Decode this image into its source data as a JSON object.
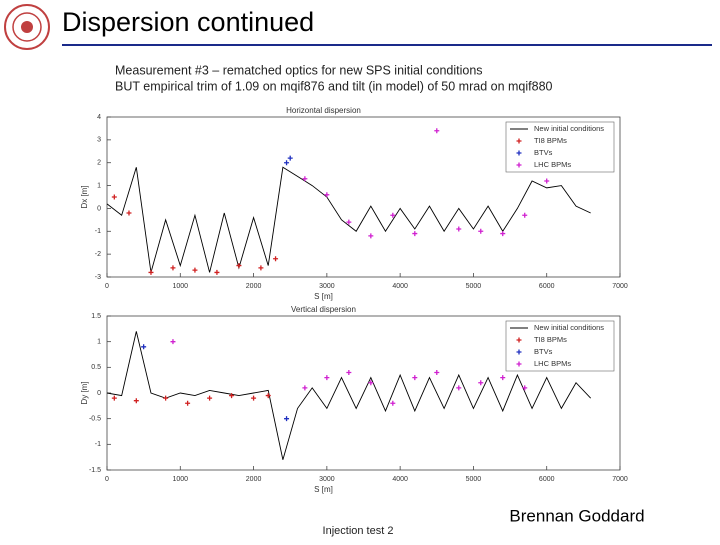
{
  "header": {
    "title": "Dispersion continued",
    "lines": [
      "Measurement #3 – rematched optics for new SPS initial conditions",
      "BUT empirical trim of 1.09 on mqif876 and tilt (in model) of 50 mrad on mqif880"
    ]
  },
  "footer": {
    "left": "Injection test 2",
    "right": "Brennan Goddard"
  },
  "chart_data": [
    {
      "type": "line",
      "title": "Horizontal dispersion",
      "x_label": "S [m]",
      "y_label": "Dx [m]",
      "x": [
        0,
        200,
        400,
        600,
        800,
        1000,
        1200,
        1400,
        1600,
        1800,
        2000,
        2200,
        2400,
        2600,
        2800,
        3000,
        3200,
        3400,
        3600,
        3800,
        4000,
        4200,
        4400,
        4600,
        4800,
        5000,
        5200,
        5400,
        5600,
        5800,
        6000,
        6200,
        6400,
        6600
      ],
      "xlim": [
        0,
        7000
      ],
      "xticks": [
        0,
        1000,
        2000,
        3000,
        4000,
        5000,
        6000,
        7000
      ],
      "ylim": [
        -3,
        4
      ],
      "yticks": [
        -3,
        -2,
        -1,
        0,
        1,
        2,
        3,
        4
      ],
      "grid": false,
      "legend": "upper right",
      "series": [
        {
          "name": "New initial conditions",
          "color": "#000000",
          "values": [
            0.2,
            -0.3,
            1.8,
            -2.8,
            -0.5,
            -2.5,
            -0.3,
            -2.8,
            -0.2,
            -2.6,
            -0.4,
            -2.5,
            1.8,
            1.4,
            1.0,
            0.5,
            -0.5,
            -1.0,
            0.1,
            -1.0,
            0.0,
            -0.9,
            0.1,
            -1.0,
            0.0,
            -0.9,
            0.1,
            -1.0,
            0.0,
            1.2,
            0.9,
            1.0,
            0.1,
            -0.2
          ]
        },
        {
          "name": "TI8 BPMs",
          "color": "#d02020",
          "marker": true,
          "x": [
            100,
            300,
            600,
            900,
            1200,
            1500,
            1800,
            2100,
            2300
          ],
          "values": [
            0.5,
            -0.2,
            -2.8,
            -2.6,
            -2.7,
            -2.8,
            -2.5,
            -2.6,
            -2.2
          ]
        },
        {
          "name": "BTVs",
          "color": "#2030c0",
          "marker": true,
          "x": [
            2450,
            2500
          ],
          "values": [
            2.0,
            2.2
          ]
        },
        {
          "name": "LHC BPMs",
          "color": "#d020d0",
          "marker": true,
          "x": [
            2700,
            3000,
            3300,
            3600,
            3900,
            4200,
            4500,
            4800,
            5100,
            5400,
            5700,
            6000
          ],
          "values": [
            1.3,
            0.6,
            -0.6,
            -1.2,
            -0.3,
            -1.1,
            3.4,
            -0.9,
            -1.0,
            -1.1,
            -0.3,
            1.2
          ]
        }
      ]
    },
    {
      "type": "line",
      "title": "Vertical dispersion",
      "x_label": "S [m]",
      "y_label": "Dy [m]",
      "x": [
        0,
        200,
        400,
        600,
        800,
        1000,
        1200,
        1400,
        1600,
        1800,
        2000,
        2200,
        2400,
        2600,
        2800,
        3000,
        3200,
        3400,
        3600,
        3800,
        4000,
        4200,
        4400,
        4600,
        4800,
        5000,
        5200,
        5400,
        5600,
        5800,
        6000,
        6200,
        6400,
        6600
      ],
      "xlim": [
        0,
        7000
      ],
      "xticks": [
        0,
        1000,
        2000,
        3000,
        4000,
        5000,
        6000,
        7000
      ],
      "ylim": [
        -1.5,
        1.5
      ],
      "yticks": [
        -1.5,
        -1,
        -0.5,
        0,
        0.5,
        1,
        1.5
      ],
      "grid": false,
      "legend": "upper right",
      "series": [
        {
          "name": "New initial conditions",
          "color": "#000000",
          "values": [
            0,
            -0.05,
            1.2,
            0.0,
            -0.1,
            0.0,
            -0.05,
            0.05,
            0.0,
            -0.05,
            0.0,
            0.05,
            -1.3,
            -0.3,
            0.1,
            -0.3,
            0.3,
            -0.3,
            0.3,
            -0.35,
            0.35,
            -0.35,
            0.3,
            -0.3,
            0.35,
            -0.3,
            0.3,
            -0.35,
            0.35,
            -0.3,
            0.3,
            -0.3,
            0.2,
            -0.1
          ]
        },
        {
          "name": "TI8 BPMs",
          "color": "#d02020",
          "marker": true,
          "x": [
            100,
            400,
            800,
            1100,
            1400,
            1700,
            2000,
            2200
          ],
          "values": [
            -0.1,
            -0.15,
            -0.1,
            -0.2,
            -0.1,
            -0.05,
            -0.1,
            -0.05
          ]
        },
        {
          "name": "BTVs",
          "color": "#2030c0",
          "marker": true,
          "x": [
            500,
            2450
          ],
          "values": [
            0.9,
            -0.5
          ]
        },
        {
          "name": "LHC BPMs",
          "color": "#d020d0",
          "marker": true,
          "x": [
            900,
            2700,
            3000,
            3300,
            3600,
            3900,
            4200,
            4500,
            4800,
            5100,
            5400,
            5700
          ],
          "values": [
            1.0,
            0.1,
            0.3,
            0.4,
            0.2,
            -0.2,
            0.3,
            0.4,
            0.1,
            0.2,
            0.3,
            0.1
          ]
        }
      ]
    }
  ]
}
